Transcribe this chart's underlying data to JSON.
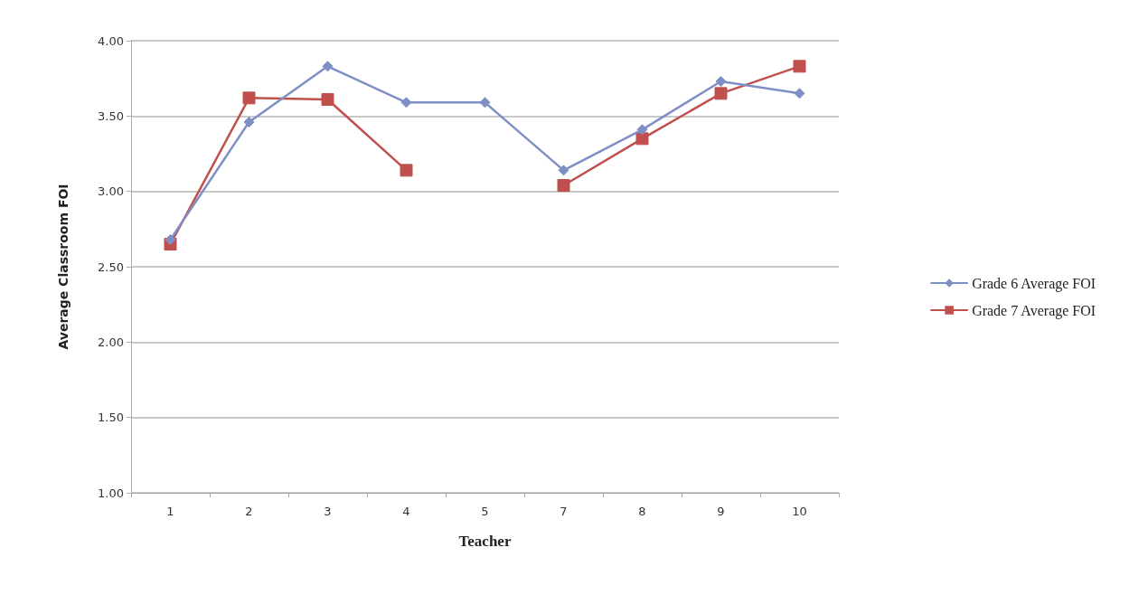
{
  "chart_data": {
    "type": "line",
    "xlabel": "Teacher",
    "ylabel": "Average Classroom FOI",
    "categories": [
      "1",
      "2",
      "3",
      "4",
      "5",
      "7",
      "8",
      "9",
      "10"
    ],
    "series": [
      {
        "name": "Grade 6 Average FOI",
        "color": "#7f8fc4",
        "marker": "diamond",
        "values": [
          2.68,
          3.46,
          3.83,
          3.59,
          3.59,
          3.14,
          3.41,
          3.73,
          3.65
        ]
      },
      {
        "name": "Grade 7 Average FOI",
        "color": "#c0504d",
        "marker": "square",
        "values": [
          2.65,
          3.62,
          3.61,
          3.14,
          null,
          3.04,
          3.35,
          3.65,
          3.83
        ]
      }
    ],
    "ylim": [
      1,
      4
    ],
    "yticks": [
      {
        "value": 1,
        "label": "1.00"
      },
      {
        "value": 1.5,
        "label": "1.50"
      },
      {
        "value": 2,
        "label": "2.00"
      },
      {
        "value": 2.5,
        "label": "2.50"
      },
      {
        "value": 3,
        "label": "3.00"
      },
      {
        "value": 3.5,
        "label": "3.50"
      },
      {
        "value": 4,
        "label": "4.00"
      }
    ],
    "grid": "y",
    "legend": "right",
    "line_style": "solid"
  }
}
